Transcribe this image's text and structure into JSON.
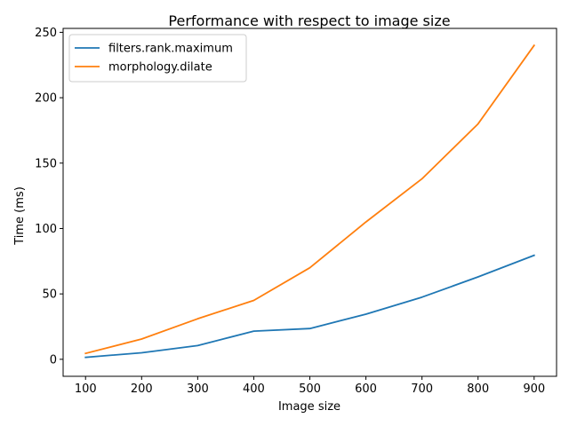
{
  "chart_data": {
    "type": "line",
    "title": "Performance with respect to image size",
    "xlabel": "Image size",
    "ylabel": "Time (ms)",
    "x": [
      100,
      200,
      300,
      400,
      500,
      600,
      700,
      800,
      900
    ],
    "xticks": [
      100,
      200,
      300,
      400,
      500,
      600,
      700,
      800,
      900
    ],
    "yticks": [
      0,
      50,
      100,
      150,
      200,
      250
    ],
    "xlim": [
      60,
      940
    ],
    "ylim": [
      -13,
      253
    ],
    "grid": false,
    "legend_position": "top-left",
    "series": [
      {
        "name": "filters.rank.maximum",
        "color": "#1f77b4",
        "values": [
          1.5,
          5,
          10.5,
          21.5,
          23.5,
          34.5,
          47.5,
          63,
          79.5
        ]
      },
      {
        "name": "morphology.dilate",
        "color": "#ff7f0e",
        "values": [
          4.5,
          15.5,
          31,
          45,
          70,
          105,
          138,
          180,
          240
        ]
      }
    ]
  }
}
